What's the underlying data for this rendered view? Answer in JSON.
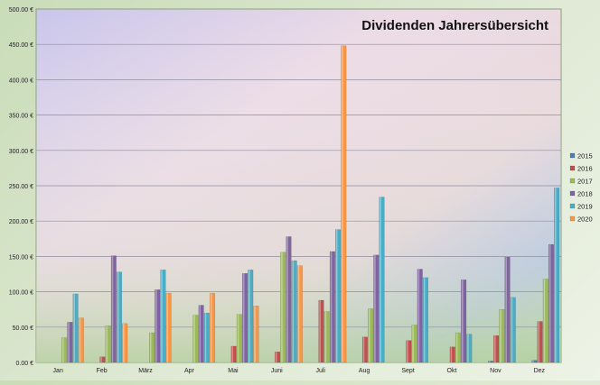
{
  "chart_data": {
    "type": "bar",
    "title": "Dividenden Jahrersübersicht",
    "xlabel": "",
    "ylabel": "",
    "ylim": [
      0,
      500
    ],
    "yticks": [
      "0.00 €",
      "50.00 €",
      "100.00 €",
      "150.00 €",
      "200.00 €",
      "250.00 €",
      "300.00 €",
      "350.00 €",
      "400.00 €",
      "450.00 €",
      "500.00 €"
    ],
    "grid": true,
    "legend_position": "right",
    "categories": [
      "Jan",
      "Feb",
      "März",
      "Apr",
      "Mai",
      "Juni",
      "Juli",
      "Aug",
      "Sept",
      "Okt",
      "Nov",
      "Dez"
    ],
    "series": [
      {
        "name": "2015",
        "color": "#4a7ebb",
        "values": [
          0,
          0,
          0,
          0,
          0,
          0,
          0,
          0,
          0,
          0,
          2,
          3
        ]
      },
      {
        "name": "2016",
        "color": "#c0504d",
        "values": [
          0,
          8,
          0,
          0,
          23,
          15,
          88,
          36,
          31,
          22,
          38,
          58
        ]
      },
      {
        "name": "2017",
        "color": "#9bbb59",
        "values": [
          35,
          52,
          42,
          67,
          68,
          156,
          72,
          76,
          53,
          42,
          75,
          118
        ]
      },
      {
        "name": "2018",
        "color": "#8064a2",
        "values": [
          57,
          151,
          103,
          81,
          126,
          178,
          157,
          152,
          132,
          117,
          149,
          167
        ]
      },
      {
        "name": "2019",
        "color": "#4bacc6",
        "values": [
          97,
          128,
          131,
          70,
          131,
          144,
          188,
          234,
          120,
          40,
          92,
          247
        ]
      },
      {
        "name": "2020",
        "color": "#f79646",
        "values": [
          63,
          55,
          98,
          98,
          80,
          137,
          448,
          0,
          0,
          0,
          0,
          0
        ]
      }
    ]
  }
}
